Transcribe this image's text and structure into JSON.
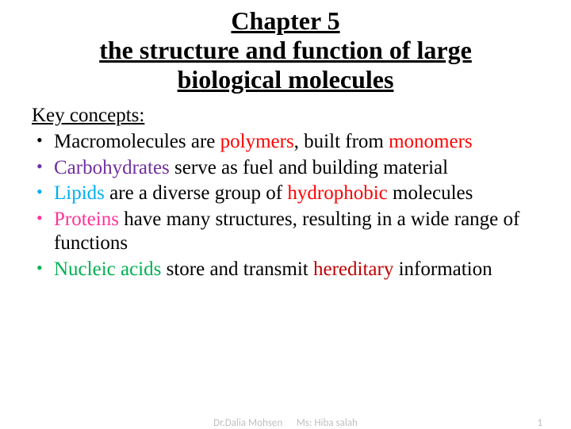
{
  "title": {
    "line1": "Chapter 5",
    "line2": "the structure and function of large",
    "line3": "biological molecules",
    "fontsize": 32,
    "color": "#000000",
    "underline": true,
    "bold": true
  },
  "key_concepts_label": "Key concepts:",
  "bullets": [
    {
      "bullet_color": "#000000",
      "spans": [
        {
          "text": "Macromolecules are ",
          "color": "#000000"
        },
        {
          "text": "polymers",
          "color": "#ff0000"
        },
        {
          "text": ", built from ",
          "color": "#000000"
        },
        {
          "text": "monomers",
          "color": "#ff0000"
        }
      ]
    },
    {
      "bullet_color": "#7030a0",
      "spans": [
        {
          "text": "Carbohydrates ",
          "color": "#7030a0"
        },
        {
          "text": "serve as fuel and building material",
          "color": "#000000"
        }
      ]
    },
    {
      "bullet_color": "#00b0f0",
      "spans": [
        {
          "text": "Lipids ",
          "color": "#00b0f0"
        },
        {
          "text": "are a diverse group of ",
          "color": "#000000"
        },
        {
          "text": "hydrophobic ",
          "color": "#ff0000"
        },
        {
          "text": "molecules",
          "color": "#000000"
        }
      ]
    },
    {
      "bullet_color": "#ff3399",
      "spans": [
        {
          "text": "Proteins ",
          "color": "#ff3399"
        },
        {
          "text": "have many structures, resulting in a wide range of functions",
          "color": "#000000"
        }
      ]
    },
    {
      "bullet_color": "#00b050",
      "spans": [
        {
          "text": "Nucleic acids ",
          "color": "#00b050"
        },
        {
          "text": "store and transmit ",
          "color": "#000000"
        },
        {
          "text": "hereditary ",
          "color": "#c00000"
        },
        {
          "text": "information",
          "color": "#000000"
        }
      ]
    }
  ],
  "body_fontsize": 25,
  "footer": {
    "author": "Dr.Dalia Mohsen      Ms: Hiba salah",
    "page": "1",
    "color": "#bfbfbf",
    "fontsize": 13
  },
  "background_color": "#ffffff"
}
